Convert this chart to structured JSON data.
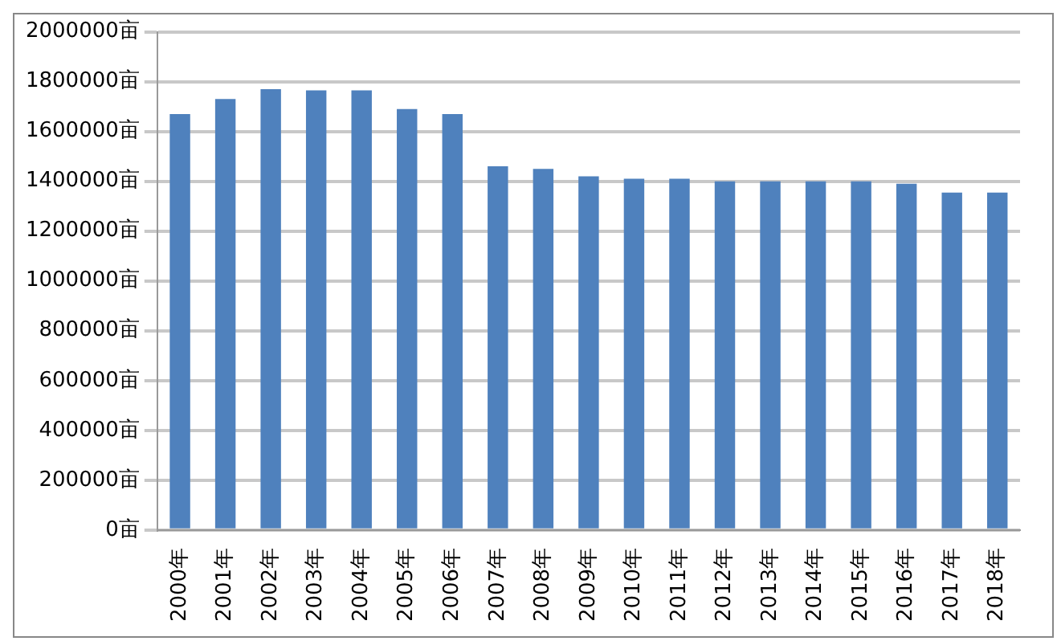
{
  "chart_data": {
    "type": "bar",
    "categories": [
      "2000年",
      "2001年",
      "2002年",
      "2003年",
      "2004年",
      "2005年",
      "2006年",
      "2007年",
      "2008年",
      "2009年",
      "2010年",
      "2011年",
      "2012年",
      "2013年",
      "2014年",
      "2015年",
      "2016年",
      "2017年",
      "2018年"
    ],
    "values": [
      1670000,
      1730000,
      1770000,
      1765000,
      1765000,
      1690000,
      1670000,
      1460000,
      1450000,
      1420000,
      1410000,
      1410000,
      1400000,
      1400000,
      1400000,
      1400000,
      1390000,
      1355000,
      1355000
    ],
    "color": "#4f81bd",
    "ylim": [
      0,
      2000000
    ],
    "yticks": [
      {
        "value": 0,
        "label": "0亩"
      },
      {
        "value": 200000,
        "label": "200000亩"
      },
      {
        "value": 400000,
        "label": "400000亩"
      },
      {
        "value": 600000,
        "label": "600000亩"
      },
      {
        "value": 800000,
        "label": "800000亩"
      },
      {
        "value": 1000000,
        "label": "1000000亩"
      },
      {
        "value": 1200000,
        "label": "1200000亩"
      },
      {
        "value": 1400000,
        "label": "1400000亩"
      },
      {
        "value": 1600000,
        "label": "1600000亩"
      },
      {
        "value": 1800000,
        "label": "1800000亩"
      },
      {
        "value": 2000000,
        "label": "2000000亩"
      }
    ],
    "grid": "y"
  }
}
